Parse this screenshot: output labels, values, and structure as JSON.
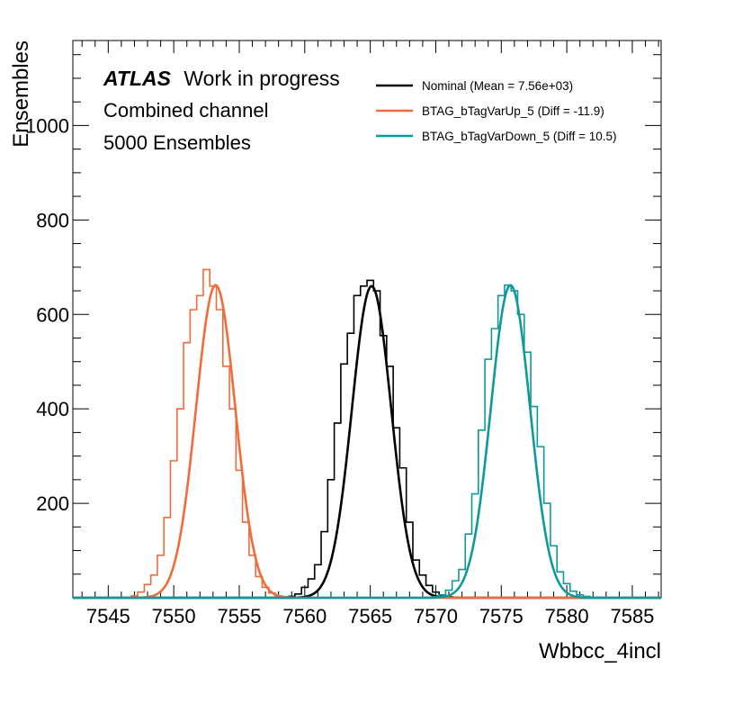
{
  "chart_data": {
    "type": "line",
    "xlabel": "Wbbcc_4incl",
    "ylabel": "Ensembles",
    "xlim": [
      7542.3,
      7587.2
    ],
    "ylim": [
      0,
      1180
    ],
    "x_ticks": [
      7545,
      7550,
      7555,
      7560,
      7565,
      7570,
      7575,
      7580,
      7585
    ],
    "y_ticks": [
      200,
      400,
      600,
      800,
      1000
    ],
    "annotations": {
      "atlas": "ATLAS",
      "status": "Work in progress",
      "channel": "Combined channel",
      "ensembles": "5000 Ensembles"
    },
    "legend_position": "top-right",
    "series": [
      {
        "name": "Nominal (Mean = 7.56e+03)",
        "color": "#000000",
        "fit": {
          "mean": 7565.1,
          "sigma": 1.5,
          "amplitude": 660
        },
        "hist_x": [
          7559.0,
          7559.5,
          7560.0,
          7560.5,
          7561.0,
          7561.5,
          7562.0,
          7562.5,
          7563.0,
          7563.5,
          7564.0,
          7564.5,
          7565.0,
          7565.5,
          7566.0,
          7566.5,
          7567.0,
          7567.5,
          7568.0,
          7568.5,
          7569.0,
          7569.5,
          7570.0,
          7570.5,
          7571.0
        ],
        "hist_y": [
          3,
          8,
          22,
          40,
          70,
          140,
          250,
          370,
          495,
          560,
          640,
          660,
          672,
          650,
          555,
          490,
          360,
          275,
          160,
          80,
          48,
          26,
          12,
          5,
          2
        ]
      },
      {
        "name": "BTAG_bTagVarUp_5    (Diff = -11.9)",
        "color": "#f26b3a",
        "fit": {
          "mean": 7553.2,
          "sigma": 1.5,
          "amplitude": 662
        },
        "hist_x": [
          7547.0,
          7547.5,
          7548.0,
          7548.5,
          7549.0,
          7549.5,
          7550.0,
          7550.5,
          7551.0,
          7551.5,
          7552.0,
          7552.5,
          7553.0,
          7553.5,
          7554.0,
          7554.5,
          7555.0,
          7555.5,
          7556.0,
          7556.5,
          7557.0,
          7557.5,
          7558.0,
          7558.5,
          7559.0
        ],
        "hist_y": [
          4,
          12,
          28,
          48,
          90,
          170,
          290,
          400,
          540,
          610,
          640,
          695,
          660,
          610,
          490,
          400,
          270,
          160,
          90,
          45,
          22,
          10,
          4,
          2,
          1
        ]
      },
      {
        "name": "BTAG_bTagVarDown_5 (Diff = 10.5)",
        "color": "#0e9a9a",
        "fit": {
          "mean": 7575.7,
          "sigma": 1.5,
          "amplitude": 662
        },
        "hist_x": [
          7570.0,
          7570.5,
          7571.0,
          7571.5,
          7572.0,
          7572.5,
          7573.0,
          7573.5,
          7574.0,
          7574.5,
          7575.0,
          7575.5,
          7576.0,
          7576.5,
          7577.0,
          7577.5,
          7578.0,
          7578.5,
          7579.0,
          7579.5,
          7580.0,
          7580.5,
          7581.0,
          7581.5,
          7582.0
        ],
        "hist_y": [
          2,
          6,
          16,
          36,
          60,
          135,
          220,
          355,
          505,
          570,
          640,
          662,
          650,
          600,
          520,
          405,
          320,
          200,
          110,
          55,
          30,
          14,
          6,
          3,
          1
        ]
      }
    ]
  }
}
